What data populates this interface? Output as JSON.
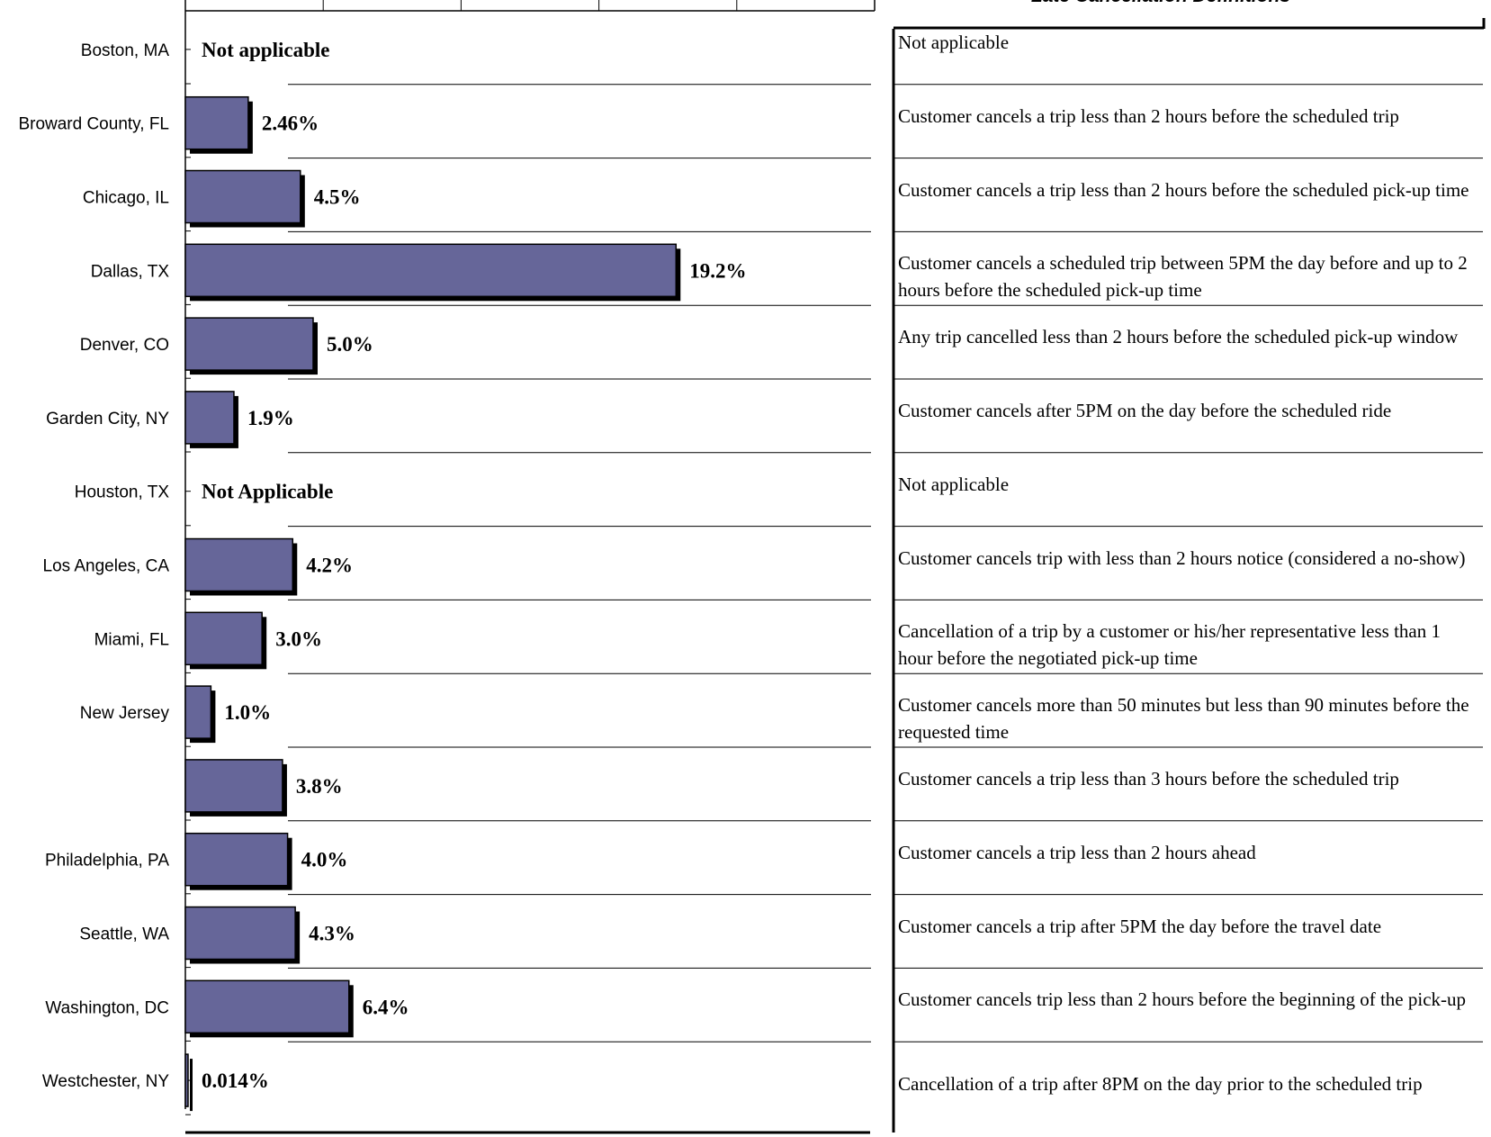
{
  "right_panel": {
    "title": "Late Cancellation Definitions"
  },
  "chart_data": {
    "type": "bar",
    "orientation": "horizontal",
    "categories": [
      "Boston, MA",
      "Broward County, FL",
      "Chicago, IL",
      "Dallas, TX",
      "Denver, CO",
      "Garden City, NY",
      "Houston, TX",
      "Los Angeles, CA",
      "Miami, FL",
      "New Jersey",
      "",
      "Philadelphia, PA",
      "Seattle, WA",
      "Washington, DC",
      "Westchester, NY"
    ],
    "values": [
      null,
      2.46,
      4.5,
      19.2,
      5.0,
      1.9,
      null,
      4.2,
      3.0,
      1.0,
      3.8,
      4.0,
      4.3,
      6.4,
      0.014
    ],
    "value_labels": [
      "Not applicable",
      "2.46%",
      "4.5%",
      "19.2%",
      "5.0%",
      "1.9%",
      "Not Applicable",
      "4.2%",
      "3.0%",
      "1.0%",
      "3.8%",
      "4.0%",
      "4.3%",
      "6.4%",
      "0.014%"
    ],
    "xlim": [
      0,
      25
    ],
    "bar_color": "#666699",
    "shadow_color": "#000000",
    "definitions": [
      "Not applicable",
      "Customer cancels a trip less than 2 hours before the scheduled trip",
      "Customer cancels a trip less than 2 hours before the scheduled pick-up time",
      "Customer cancels a scheduled trip between 5PM the day before and up to 2 hours before the scheduled pick-up time",
      "Any trip cancelled less than 2 hours before the scheduled pick-up window",
      "Customer cancels after 5PM on the day before the scheduled ride",
      "Not applicable",
      "Customer cancels trip with less than 2 hours notice (considered a no-show)",
      "Cancellation of a trip by a customer or his/her representative less than 1 hour before the negotiated pick-up time",
      "Customer cancels more than 50 minutes but less than 90 minutes before the requested time",
      "Customer cancels a trip less than 3 hours before the scheduled trip",
      "Customer cancels a trip less than 2 hours ahead",
      " Customer cancels a trip after 5PM the day before the travel date",
      "Customer cancels trip less than 2 hours before the beginning of the pick-up",
      "Cancellation of a trip after 8PM on the day prior to the scheduled trip"
    ]
  }
}
